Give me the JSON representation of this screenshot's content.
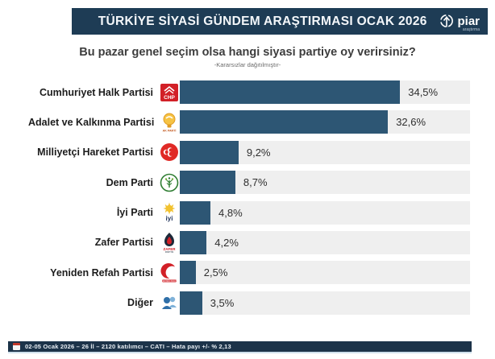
{
  "header": {
    "title": "TÜRKİYE SİYASİ GÜNDEM ARAŞTIRMASI OCAK 2026",
    "brand": "piar",
    "brand_sub": "araştırma"
  },
  "question": "Bu pazar genel seçim olsa hangi siyasi partiye oy verirsiniz?",
  "subtitle": "-Kararsızlar dağıtılmıştır-",
  "parties": [
    {
      "name": "Cumhuriyet Halk Partisi",
      "value": 34.5,
      "label": "34,5%",
      "logo_icon": "chp-logo-icon"
    },
    {
      "name": "Adalet ve Kalkınma Partisi",
      "value": 32.6,
      "label": "32,6%",
      "logo_icon": "akp-logo-icon"
    },
    {
      "name": "Milliyetçi Hareket Partisi",
      "value": 9.2,
      "label": "9,2%",
      "logo_icon": "mhp-logo-icon"
    },
    {
      "name": "Dem Parti",
      "value": 8.7,
      "label": "8,7%",
      "logo_icon": "dem-logo-icon"
    },
    {
      "name": "İyi Parti",
      "value": 4.8,
      "label": "4,8%",
      "logo_icon": "iyi-logo-icon"
    },
    {
      "name": "Zafer Partisi",
      "value": 4.2,
      "label": "4,2%",
      "logo_icon": "zafer-logo-icon"
    },
    {
      "name": "Yeniden Refah Partisi",
      "value": 2.5,
      "label": "2,5%",
      "logo_icon": "yrp-logo-icon"
    },
    {
      "name": "Diğer",
      "value": 3.5,
      "label": "3,5%",
      "logo_icon": "diger-logo-icon"
    }
  ],
  "footer": {
    "text": "02-05 Ocak 2026 – 26 İl – 2120 katılımcı – CATI – Hata payı +/- % 2,13"
  },
  "colors": {
    "header_bg": "#1e3c55",
    "bar": "#2d5674",
    "track": "#efefef",
    "footer_bg": "#1c3349"
  },
  "chart_data": {
    "type": "bar",
    "orientation": "horizontal",
    "title": "Bu pazar genel seçim olsa hangi siyasi partiye oy verirsiniz?",
    "subtitle": "-Kararsızlar dağıtılmıştır-",
    "categories": [
      "Cumhuriyet Halk Partisi",
      "Adalet ve Kalkınma Partisi",
      "Milliyetçi Hareket Partisi",
      "Dem Parti",
      "İyi Parti",
      "Zafer Partisi",
      "Yeniden Refah Partisi",
      "Diğer"
    ],
    "values": [
      34.5,
      32.6,
      9.2,
      8.7,
      4.8,
      4.2,
      2.5,
      3.5
    ],
    "value_labels": [
      "34,5%",
      "32,6%",
      "9,2%",
      "8,7%",
      "4,8%",
      "4,2%",
      "2,5%",
      "3,5%"
    ],
    "unit": "%",
    "xlim": [
      0,
      45
    ],
    "grid": false,
    "legend": false
  }
}
